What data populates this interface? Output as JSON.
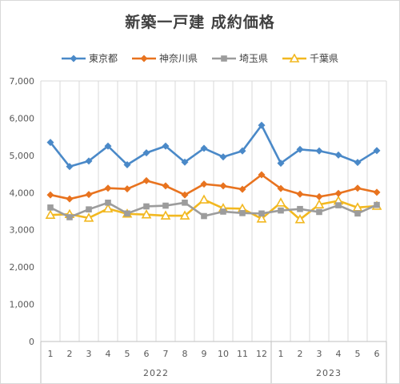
{
  "chart_data": {
    "type": "line",
    "title": "新築一戸建 成約価格",
    "xlabel": "",
    "ylabel": "",
    "ylim": [
      0,
      7000
    ],
    "yticks": [
      "0",
      "1,000",
      "2,000",
      "3,000",
      "4,000",
      "5,000",
      "6,000",
      "7,000"
    ],
    "ytick_values": [
      0,
      1000,
      2000,
      3000,
      4000,
      5000,
      6000,
      7000
    ],
    "categories": [
      "1",
      "2",
      "3",
      "4",
      "5",
      "6",
      "7",
      "8",
      "9",
      "10",
      "11",
      "12",
      "1",
      "2",
      "3",
      "4",
      "5",
      "6"
    ],
    "year_groups": [
      {
        "label": "2022",
        "count": 12
      },
      {
        "label": "2023",
        "count": 6
      }
    ],
    "grid": true,
    "legend_position": "top",
    "series": [
      {
        "name": "東京都",
        "color": "#4a89c8",
        "marker": "diamond",
        "values": [
          5350,
          4700,
          4850,
          5250,
          4750,
          5070,
          5250,
          4820,
          5190,
          4960,
          5120,
          5810,
          4790,
          5160,
          5120,
          5010,
          4810,
          5130
        ]
      },
      {
        "name": "神奈川県",
        "color": "#e8731f",
        "marker": "diamond",
        "values": [
          3940,
          3830,
          3950,
          4120,
          4100,
          4320,
          4180,
          3940,
          4230,
          4180,
          4090,
          4480,
          4110,
          3960,
          3890,
          3980,
          4120,
          4010
        ]
      },
      {
        "name": "埼玉県",
        "color": "#9c9c9c",
        "marker": "square",
        "values": [
          3600,
          3340,
          3550,
          3730,
          3440,
          3630,
          3650,
          3730,
          3370,
          3490,
          3450,
          3440,
          3520,
          3560,
          3480,
          3660,
          3440,
          3670
        ]
      },
      {
        "name": "千葉県",
        "color": "#f2b820",
        "marker": "triangle",
        "values": [
          3400,
          3420,
          3320,
          3570,
          3430,
          3410,
          3380,
          3380,
          3810,
          3580,
          3570,
          3300,
          3730,
          3280,
          3680,
          3780,
          3600,
          3640
        ]
      }
    ]
  }
}
